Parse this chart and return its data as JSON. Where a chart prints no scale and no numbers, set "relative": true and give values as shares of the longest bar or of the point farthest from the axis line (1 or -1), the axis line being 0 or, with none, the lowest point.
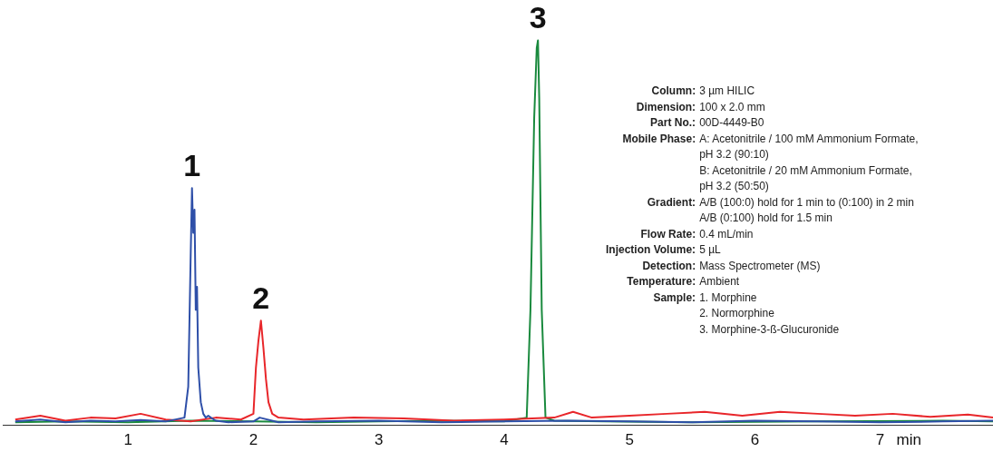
{
  "chart_data": {
    "type": "line",
    "relative": true,
    "xlabel": "min",
    "xlim": [
      0,
      7.9
    ],
    "xticks": [
      1,
      2,
      3,
      4,
      5,
      6,
      7
    ],
    "grid": false,
    "legend": false,
    "marker": "none",
    "line_style": "solid",
    "series": [
      {
        "color": "#2e4fa8",
        "x": [
          0.1,
          0.3,
          0.5,
          0.7,
          0.9,
          1.1,
          1.3,
          1.45,
          1.48,
          1.5,
          1.51,
          1.52,
          1.53,
          1.54,
          1.55,
          1.56,
          1.58,
          1.6,
          1.62,
          1.64,
          1.66,
          1.7,
          1.8,
          2.0,
          2.05,
          2.2,
          2.5,
          3,
          3.5,
          4,
          4.5,
          5,
          5.5,
          6,
          6.5,
          7,
          7.5,
          7.9
        ],
        "values": [
          0.01,
          0.015,
          0.008,
          0.012,
          0.01,
          0.014,
          0.01,
          0.02,
          0.1,
          0.45,
          0.616,
          0.5,
          0.56,
          0.3,
          0.36,
          0.15,
          0.06,
          0.03,
          0.02,
          0.025,
          0.02,
          0.012,
          0.008,
          0.01,
          0.02,
          0.008,
          0.01,
          0.012,
          0.008,
          0.01,
          0.012,
          0.01,
          0.008,
          0.012,
          0.01,
          0.008,
          0.01,
          0.012
        ]
      },
      {
        "color": "#e8262a",
        "x": [
          0.1,
          0.3,
          0.5,
          0.7,
          0.9,
          1.1,
          1.3,
          1.5,
          1.7,
          1.9,
          2.0,
          2.02,
          2.04,
          2.06,
          2.08,
          2.1,
          2.12,
          2.15,
          2.2,
          2.4,
          2.8,
          3.2,
          3.6,
          4.0,
          4.4,
          4.55,
          4.7,
          5.0,
          5.3,
          5.6,
          5.9,
          6.2,
          6.5,
          6.8,
          7.1,
          7.4,
          7.7,
          7.9
        ],
        "values": [
          0.015,
          0.025,
          0.012,
          0.02,
          0.018,
          0.03,
          0.015,
          0.01,
          0.02,
          0.015,
          0.03,
          0.15,
          0.22,
          0.272,
          0.2,
          0.12,
          0.06,
          0.03,
          0.02,
          0.015,
          0.02,
          0.018,
          0.012,
          0.015,
          0.02,
          0.035,
          0.02,
          0.025,
          0.03,
          0.035,
          0.025,
          0.035,
          0.03,
          0.025,
          0.03,
          0.022,
          0.028,
          0.02
        ]
      },
      {
        "color": "#1a8a3e",
        "x": [
          0.1,
          0.5,
          1.0,
          1.5,
          2.0,
          2.5,
          3.0,
          3.5,
          4.0,
          4.18,
          4.21,
          4.24,
          4.26,
          4.27,
          4.28,
          4.3,
          4.33,
          4.4,
          4.8,
          5.5,
          6.5,
          7.5,
          7.9
        ],
        "values": [
          0.008,
          0.01,
          0.008,
          0.012,
          0.01,
          0.008,
          0.01,
          0.012,
          0.01,
          0.02,
          0.3,
          0.8,
          0.98,
          1,
          0.85,
          0.3,
          0.02,
          0.012,
          0.01,
          0.008,
          0.01,
          0.012,
          0.01
        ]
      }
    ],
    "annotations": [
      {
        "text": "1",
        "x": 1.51,
        "y": 0.616
      },
      {
        "text": "2",
        "x": 2.06,
        "y": 0.272
      },
      {
        "text": "3",
        "x": 4.27,
        "y": 1
      },
      "Column: 3 µm HILIC",
      "Dimension: 100 x 2.0 mm",
      "Part No.: 00D-4449-B0",
      "Mobile Phase: A: Acetonitrile / 100 mM Ammonium Formate,\npH 3.2 (90:10)\nB: Acetonitrile / 20 mM Ammonium Formate,\npH 3.2 (50:50)",
      "Gradient: A/B (100:0) hold for 1 min to (0:100) in 2 min\nA/B (0:100) hold for 1.5 min",
      "Flow Rate: 0.4 mL/min",
      "Injection Volume: 5 µL",
      "Detection: Mass Spectrometer (MS)",
      "Temperature: Ambient",
      "Sample: 1. Morphine\n2. Normorphine\n3. Morphine-3-ß-Glucuronide"
    ]
  }
}
